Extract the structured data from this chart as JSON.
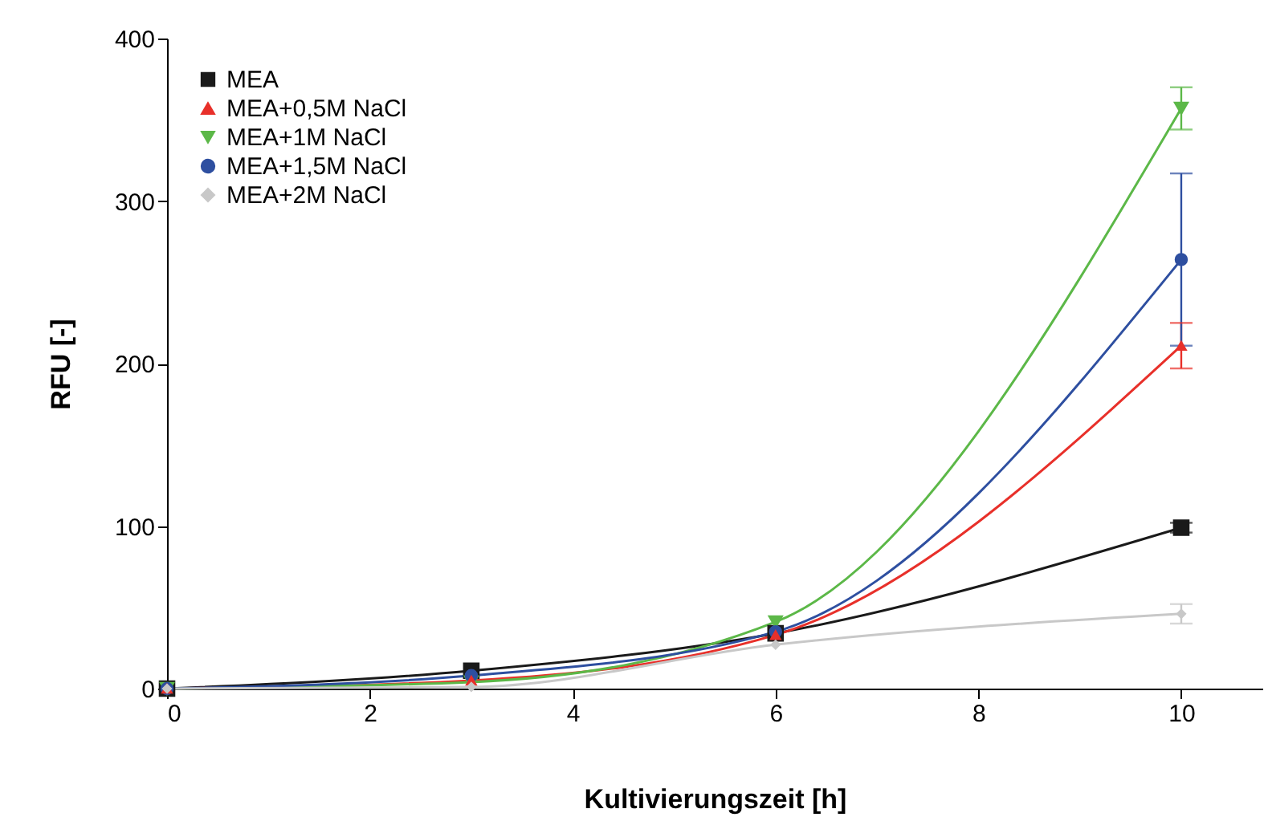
{
  "chart_data": {
    "type": "line",
    "xlabel": "Kultivierungszeit [h]",
    "ylabel": "RFU [-]",
    "x": [
      0,
      3,
      6,
      10
    ],
    "xlim": [
      0,
      10.8
    ],
    "xticks": [
      0,
      2,
      4,
      6,
      8,
      10
    ],
    "ylim": [
      0,
      400
    ],
    "yticks": [
      0,
      100,
      200,
      300,
      400
    ],
    "grid": false,
    "legend": "top left",
    "line_style": "solid",
    "series": [
      {
        "name": "MEA",
        "color": "#1a1a1a",
        "marker": "square",
        "values": [
          0,
          11,
          34,
          99
        ],
        "errors": [
          null,
          null,
          null,
          3
        ]
      },
      {
        "name": "MEA+0,5M NaCl",
        "color": "#e8302a",
        "marker": "triangle",
        "values": [
          0,
          5,
          33,
          211
        ],
        "errors": [
          null,
          null,
          null,
          14
        ]
      },
      {
        "name": "MEA+1M NaCl",
        "color": "#5cb848",
        "marker": "triangle-down",
        "values": [
          0,
          4,
          41,
          357
        ],
        "errors": [
          null,
          null,
          null,
          13
        ]
      },
      {
        "name": "MEA+1,5M NaCl",
        "color": "#2e4fa0",
        "marker": "circle",
        "values": [
          0,
          8,
          35,
          264
        ],
        "errors": [
          null,
          null,
          null,
          53
        ]
      },
      {
        "name": "MEA+2M NaCl",
        "color": "#c8c8c8",
        "marker": "diamond",
        "values": [
          0,
          1,
          27,
          46
        ],
        "errors": [
          null,
          null,
          null,
          6
        ]
      }
    ]
  }
}
